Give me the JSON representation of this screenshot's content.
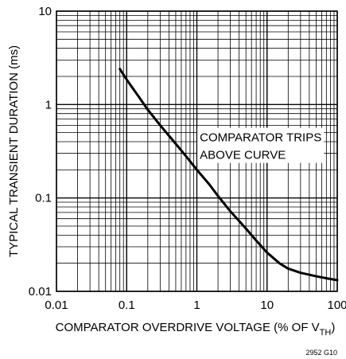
{
  "chart_data": {
    "type": "line",
    "title": "",
    "xlabel": "COMPARATOR OVERDRIVE VOLTAGE (% OF V",
    "xlabel_subscript": "TH",
    "xlabel_suffix": ")",
    "ylabel": "TYPICAL TRANSIENT DURATION (ms)",
    "x_scale": "log",
    "y_scale": "log",
    "xlim": [
      0.01,
      100
    ],
    "ylim": [
      0.01,
      10
    ],
    "x_ticks": [
      {
        "value": 0.01,
        "label": "0.01"
      },
      {
        "value": 0.1,
        "label": "0.1"
      },
      {
        "value": 1,
        "label": "1"
      },
      {
        "value": 10,
        "label": "10"
      },
      {
        "value": 100,
        "label": "100"
      }
    ],
    "y_ticks": [
      {
        "value": 0.01,
        "label": "0.01"
      },
      {
        "value": 0.1,
        "label": "0.1"
      },
      {
        "value": 1,
        "label": "1"
      },
      {
        "value": 10,
        "label": "10"
      }
    ],
    "grid": true,
    "series": [
      {
        "points": [
          [
            0.08,
            2.4
          ],
          [
            0.1,
            1.85
          ],
          [
            0.15,
            1.2
          ],
          [
            0.2,
            0.88
          ],
          [
            0.3,
            0.6
          ],
          [
            0.5,
            0.38
          ],
          [
            0.7,
            0.28
          ],
          [
            1,
            0.2
          ],
          [
            1.5,
            0.14
          ],
          [
            2,
            0.105
          ],
          [
            3,
            0.072
          ],
          [
            5,
            0.047
          ],
          [
            7,
            0.035
          ],
          [
            10,
            0.026
          ],
          [
            15,
            0.02
          ],
          [
            20,
            0.0175
          ],
          [
            30,
            0.0158
          ],
          [
            50,
            0.0145
          ],
          [
            70,
            0.0138
          ],
          [
            100,
            0.0132
          ]
        ]
      }
    ],
    "annotation": {
      "lines": [
        "COMPARATOR TRIPS",
        "ABOVE CURVE"
      ],
      "x": 1.1,
      "y": 0.52
    },
    "figure_id": "2952 G10"
  }
}
